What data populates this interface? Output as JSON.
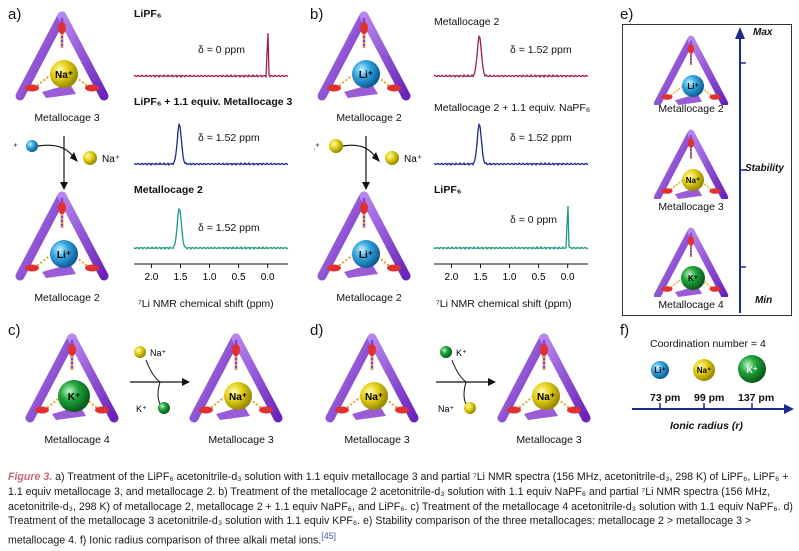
{
  "panels": {
    "a": "a)",
    "b": "b)",
    "c": "c)",
    "d": "d)",
    "e": "e)",
    "f": "f)"
  },
  "ions": {
    "li": "Li⁺",
    "na": "Na⁺",
    "k": "K⁺"
  },
  "cage_labels": {
    "a_top": "Metallocage 3",
    "a_bottom": "Metallocage 2",
    "b_top": "Metallocage 2",
    "b_bottom": "Metallocage 2",
    "c_left": "Metallocage 4",
    "c_right": "Metallocage 3",
    "d_left": "Metallocage 3",
    "d_right": "Metallocage 3",
    "e_top": "Metallocage 2",
    "e_mid": "Metallocage 3",
    "e_bottom": "Metallocage 4"
  },
  "spectra_a": [
    {
      "title": "LiPF₆",
      "delta": "δ = 0 ppm",
      "color": "#a01c50",
      "peak_ppm": 0.0
    },
    {
      "title": "LiPF₆ + 1.1 equiv. Metallocage 3",
      "delta": "δ = 1.52 ppm",
      "color": "#1c2a8c",
      "peak_ppm": 1.52
    },
    {
      "title": "Metallocage 2",
      "delta": "δ = 1.52 ppm",
      "color": "#1f9a82",
      "peak_ppm": 1.52
    }
  ],
  "spectra_b": [
    {
      "title": "Metallocage 2",
      "delta": "δ = 1.52 ppm",
      "color": "#a01c50",
      "peak_ppm": 1.52
    },
    {
      "title": "Metallocage 2 + 1.1 equiv. NaPF₆",
      "delta": "δ = 1.52 ppm",
      "color": "#1c2a8c",
      "peak_ppm": 1.52
    },
    {
      "title": "LiPF₆",
      "delta": "δ = 0 ppm",
      "color": "#1f9a82",
      "peak_ppm": 0.0
    }
  ],
  "axis": {
    "ticks": [
      "2.0",
      "1.5",
      "1.0",
      "0.5",
      "0.0"
    ],
    "label": "⁷Li NMR chemical shift (ppm)"
  },
  "stability": {
    "max": "Max",
    "mid": "Stability",
    "min": "Min"
  },
  "ionic": {
    "coord": "Coordination number = 4",
    "li_r": "73 pm",
    "na_r": "99 pm",
    "k_r": "137 pm",
    "axis_label": "Ionic radius (r)"
  },
  "caption": {
    "fig": "Figure 3.",
    "text": "a) Treatment of the LiPF₆ acetonitrile-d₃ solution with 1.1 equiv metallocage 3 and partial ⁷Li NMR spectra (156 MHz, acetonitrile-d₃, 298 K) of LiPF₆, LiPF₆ + 1.1 equiv metallocage 3, and metallocage 2. b) Treatment of the metallocage 2 acetonitrile-d₃ solution with 1.1 equiv NaPF₆ and partial ⁷Li NMR spectra (156 MHz, acetonitrile-d₃, 298 K) of metallocage 2, metallocage 2 + 1.1 equiv NaPF₆, and LiPF₆. c) Treatment of the metallocage 4 acetonitrile-d₃ solution with 1.1 equiv NaPF₆. d) Treatment of the metallocage 3 acetonitrile-d₃ solution with 1.1 equiv KPF₆. e) Stability comparison of the three metallocages: metallocage 2 > metallocage 3 > metallocage 4. f) Ionic radius comparison of three alkali metal ions.",
    "ref": "[45]"
  },
  "colors": {
    "cage": "#8a3fd0",
    "li": "#35a7e0",
    "na": "#e6d21a",
    "k": "#1fa33a"
  }
}
